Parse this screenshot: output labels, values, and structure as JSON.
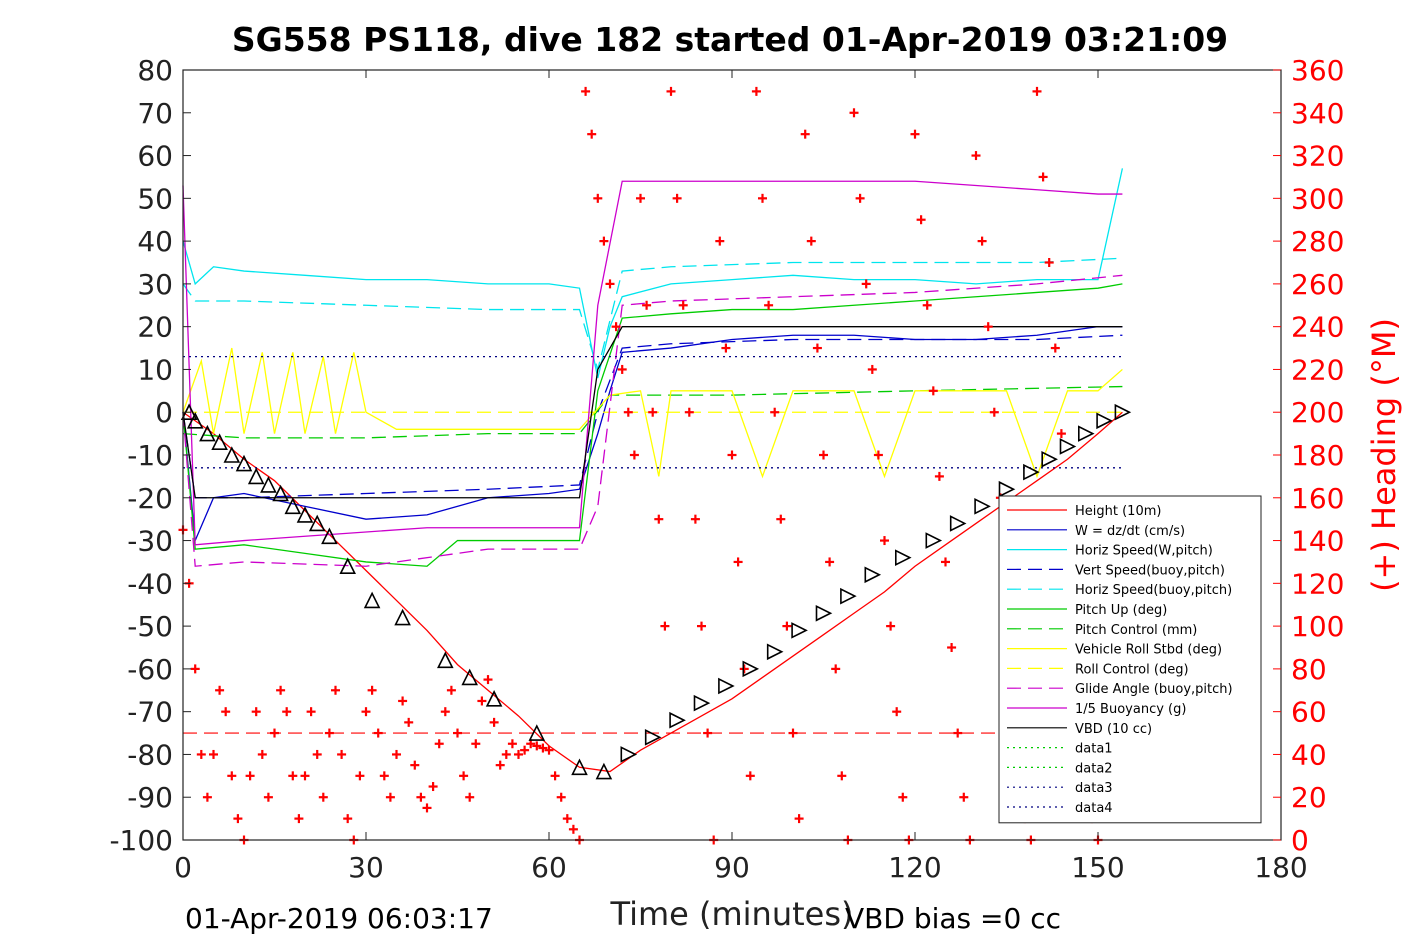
{
  "chart_data": {
    "type": "line",
    "title": "SG558 PS118, dive 182 started 01-Apr-2019 03:21:09",
    "xlabel": "Time (minutes)",
    "ylabel_right": "(+) Heading (°M)",
    "footer_left": "01-Apr-2019 06:03:17",
    "footer_right": "VBD bias =0 cc",
    "xlim": [
      0,
      180
    ],
    "ylim": [
      -100,
      80
    ],
    "ylim_right": [
      0,
      360
    ],
    "x_ticks": [
      "0",
      "30",
      "60",
      "90",
      "120",
      "150",
      "180"
    ],
    "y_ticks_left": [
      "80",
      "70",
      "60",
      "50",
      "40",
      "30",
      "20",
      "10",
      "0",
      "-10",
      "-20",
      "-30",
      "-40",
      "-50",
      "-60",
      "-70",
      "-80",
      "-90",
      "-100"
    ],
    "y_ticks_right": [
      "360",
      "340",
      "320",
      "300",
      "280",
      "260",
      "240",
      "220",
      "200",
      "180",
      "160",
      "140",
      "120",
      "100",
      "80",
      "60",
      "40",
      "20",
      "0"
    ],
    "legend_position": "lower-right",
    "grid": false,
    "series": [
      {
        "name": "Height (10m)",
        "color": "#ff0000",
        "style": "solid",
        "x": [
          0,
          5,
          10,
          15,
          20,
          25,
          30,
          35,
          40,
          45,
          50,
          55,
          60,
          65,
          70,
          75,
          80,
          85,
          90,
          95,
          100,
          105,
          110,
          115,
          120,
          125,
          130,
          135,
          140,
          145,
          150,
          154
        ],
        "y": [
          0,
          -5,
          -11,
          -16,
          -23,
          -30,
          -37,
          -44,
          -51,
          -59,
          -65,
          -71,
          -78,
          -83,
          -84,
          -79,
          -75,
          -71,
          -67,
          -62,
          -57,
          -52,
          -47,
          -42,
          -36,
          -31,
          -26,
          -21,
          -16,
          -11,
          -5,
          0
        ]
      },
      {
        "name": "W = dz/dt (cm/s)",
        "color": "#0000cc",
        "style": "solid",
        "x": [
          0,
          2,
          5,
          10,
          20,
          30,
          40,
          50,
          60,
          65,
          68,
          70,
          72,
          80,
          90,
          100,
          110,
          120,
          130,
          140,
          150,
          154
        ],
        "y": [
          0,
          -30,
          -20,
          -19,
          -22,
          -25,
          -24,
          -20,
          -19,
          -18,
          -5,
          5,
          14,
          15,
          17,
          18,
          18,
          17,
          17,
          18,
          20,
          20
        ]
      },
      {
        "name": "Horiz Speed(W,pitch)",
        "color": "#00e5ee",
        "style": "solid",
        "x": [
          0,
          2,
          5,
          10,
          20,
          30,
          40,
          50,
          60,
          65,
          68,
          70,
          72,
          80,
          90,
          100,
          110,
          120,
          130,
          140,
          150,
          154
        ],
        "y": [
          40,
          30,
          34,
          33,
          32,
          31,
          31,
          30,
          30,
          29,
          8,
          20,
          27,
          30,
          31,
          32,
          31,
          31,
          30,
          31,
          31,
          57
        ]
      },
      {
        "name": "Vert Speed(buoy,pitch)",
        "color": "#0000cc",
        "style": "dashed",
        "x": [
          0,
          2,
          10,
          30,
          50,
          65,
          68,
          72,
          80,
          100,
          120,
          140,
          154
        ],
        "y": [
          0,
          -20,
          -20,
          -19,
          -18,
          -17,
          0,
          15,
          16,
          17,
          17,
          17,
          18
        ]
      },
      {
        "name": "Horiz Speed(buoy,pitch)",
        "color": "#00e5ee",
        "style": "dashed",
        "x": [
          0,
          2,
          10,
          30,
          50,
          65,
          68,
          72,
          80,
          100,
          120,
          140,
          154
        ],
        "y": [
          30,
          26,
          26,
          25,
          24,
          24,
          10,
          33,
          34,
          35,
          35,
          35,
          36
        ]
      },
      {
        "name": "Pitch Up (deg)",
        "color": "#00cc00",
        "style": "solid",
        "x": [
          0,
          2,
          10,
          20,
          30,
          40,
          45,
          50,
          60,
          65,
          68,
          72,
          80,
          90,
          100,
          110,
          120,
          130,
          140,
          150,
          154
        ],
        "y": [
          0,
          -32,
          -31,
          -33,
          -35,
          -36,
          -30,
          -30,
          -30,
          -30,
          5,
          22,
          23,
          24,
          24,
          25,
          26,
          27,
          28,
          29,
          30
        ]
      },
      {
        "name": "Pitch Control (mm)",
        "color": "#00cc00",
        "style": "dashed",
        "x": [
          0,
          10,
          30,
          50,
          65,
          70,
          72,
          90,
          120,
          154
        ],
        "y": [
          -5,
          -6,
          -6,
          -5,
          -5,
          4,
          4,
          4,
          5,
          6
        ]
      },
      {
        "name": "Vehicle Roll Stbd (deg)",
        "color": "#ffff00",
        "style": "solid",
        "x": [
          0,
          3,
          5,
          8,
          10,
          13,
          15,
          18,
          20,
          23,
          25,
          28,
          30,
          35,
          40,
          45,
          50,
          55,
          60,
          65,
          70,
          75,
          78,
          80,
          85,
          90,
          95,
          100,
          105,
          110,
          115,
          120,
          125,
          130,
          135,
          140,
          145,
          150,
          154
        ],
        "y": [
          0,
          12,
          -5,
          15,
          -5,
          14,
          -5,
          14,
          -5,
          13,
          -5,
          14,
          0,
          -4,
          -4,
          -4,
          -4,
          -4,
          -4,
          -4,
          4,
          5,
          -15,
          5,
          5,
          5,
          -15,
          5,
          5,
          5,
          -15,
          5,
          5,
          5,
          5,
          -15,
          5,
          5,
          10
        ]
      },
      {
        "name": "Roll Control (deg)",
        "color": "#ffff00",
        "style": "dashed",
        "x": [
          0,
          154
        ],
        "y": [
          0,
          0
        ]
      },
      {
        "name": "Glide Angle (buoy,pitch)",
        "color": "#cc00cc",
        "style": "dashed",
        "x": [
          0,
          2,
          10,
          30,
          50,
          65,
          68,
          72,
          80,
          100,
          120,
          140,
          154
        ],
        "y": [
          0,
          -36,
          -35,
          -36,
          -32,
          -32,
          -22,
          25,
          26,
          27,
          28,
          30,
          32
        ]
      },
      {
        "name": "1/5 Buoyancy (g)",
        "color": "#cc00cc",
        "style": "solid",
        "x": [
          0,
          2,
          10,
          20,
          30,
          40,
          50,
          60,
          65,
          68,
          72,
          80,
          90,
          100,
          110,
          120,
          130,
          140,
          150,
          154
        ],
        "y": [
          53,
          -31,
          -30,
          -29,
          -28,
          -27,
          -27,
          -27,
          -27,
          25,
          54,
          54,
          54,
          54,
          54,
          54,
          53,
          52,
          51,
          51
        ]
      },
      {
        "name": "VBD (10 cc)",
        "color": "#000000",
        "style": "solid",
        "x": [
          0,
          2,
          10,
          30,
          50,
          65,
          68,
          72,
          80,
          100,
          120,
          140,
          154
        ],
        "y": [
          0,
          -20,
          -20,
          -20,
          -20,
          -20,
          10,
          20,
          20,
          20,
          20,
          20,
          20
        ]
      },
      {
        "name": "data1",
        "color": "#00cc00",
        "style": "dotted",
        "x": [],
        "y": []
      },
      {
        "name": "data2",
        "color": "#00cc00",
        "style": "dotted",
        "x": [],
        "y": []
      },
      {
        "name": "data3",
        "color": "#000080",
        "style": "dotted",
        "x": [
          0,
          154
        ],
        "y": [
          13,
          13
        ]
      },
      {
        "name": "data4",
        "color": "#000080",
        "style": "dotted",
        "x": [
          0,
          154
        ],
        "y": [
          -13,
          -13
        ]
      }
    ],
    "reference_lines": [
      {
        "color": "#ff0000",
        "style": "dashed",
        "x": [
          0,
          154
        ],
        "y": [
          -75,
          -75
        ]
      }
    ],
    "depth_markers": {
      "color": "#000000",
      "x": [
        1,
        2,
        4,
        6,
        8,
        10,
        12,
        14,
        16,
        18,
        20,
        22,
        24,
        27,
        31,
        36,
        43,
        47,
        51,
        58,
        65,
        69,
        73,
        77,
        81,
        85,
        89,
        93,
        97,
        101,
        105,
        109,
        113,
        118,
        123,
        127,
        131,
        135,
        139,
        142,
        145,
        148,
        151,
        154
      ],
      "y": [
        0,
        -2,
        -5,
        -7,
        -10,
        -12,
        -15,
        -17,
        -19,
        -22,
        -24,
        -26,
        -29,
        -36,
        -44,
        -48,
        -58,
        -62,
        -67,
        -75,
        -83,
        -84,
        -80,
        -76,
        -72,
        -68,
        -64,
        -60,
        -56,
        -51,
        -47,
        -43,
        -38,
        -34,
        -30,
        -26,
        -22,
        -18,
        -14,
        -11,
        -8,
        -5,
        -2,
        0
      ]
    },
    "heading": {
      "name": "(+) Heading (°M)",
      "color": "#ff0000",
      "marker": "+",
      "x": [
        0,
        1,
        2,
        3,
        4,
        5,
        6,
        7,
        8,
        9,
        10,
        11,
        12,
        13,
        14,
        15,
        16,
        17,
        18,
        19,
        20,
        21,
        22,
        23,
        24,
        25,
        26,
        27,
        28,
        29,
        30,
        31,
        32,
        33,
        34,
        35,
        36,
        37,
        38,
        39,
        40,
        41,
        42,
        43,
        44,
        45,
        46,
        47,
        48,
        49,
        50,
        51,
        52,
        53,
        54,
        55,
        56,
        57,
        58,
        59,
        60,
        61,
        62,
        63,
        64,
        65,
        66,
        67,
        68,
        69,
        70,
        71,
        72,
        73,
        74,
        75,
        76,
        77,
        78,
        79,
        80,
        81,
        82,
        83,
        84,
        85,
        86,
        87,
        88,
        89,
        90,
        91,
        92,
        93,
        94,
        95,
        96,
        97,
        98,
        99,
        100,
        101,
        102,
        103,
        104,
        105,
        106,
        107,
        108,
        109,
        110,
        111,
        112,
        113,
        114,
        115,
        116,
        117,
        118,
        119,
        120,
        121,
        122,
        123,
        124,
        125,
        126,
        127,
        128,
        129,
        130,
        131,
        132,
        133,
        134,
        135,
        136,
        137,
        138,
        139,
        140,
        141,
        142,
        143,
        144,
        145,
        146,
        147,
        148,
        149,
        150
      ],
      "y": [
        145,
        120,
        80,
        40,
        20,
        40,
        70,
        60,
        30,
        10,
        0,
        30,
        60,
        40,
        20,
        50,
        70,
        60,
        30,
        10,
        30,
        60,
        40,
        20,
        50,
        70,
        40,
        10,
        0,
        30,
        60,
        70,
        50,
        30,
        20,
        40,
        65,
        55,
        35,
        20,
        15,
        25,
        45,
        60,
        70,
        50,
        30,
        20,
        45,
        65,
        75,
        55,
        35,
        40,
        45,
        40,
        42,
        45,
        44,
        43,
        42,
        30,
        20,
        10,
        5,
        0,
        350,
        330,
        300,
        280,
        260,
        240,
        220,
        200,
        180,
        300,
        250,
        200,
        150,
        100,
        350,
        300,
        250,
        200,
        150,
        100,
        50,
        0,
        280,
        230,
        180,
        130,
        80,
        30,
        350,
        300,
        250,
        200,
        150,
        100,
        50,
        10,
        330,
        280,
        230,
        180,
        130,
        80,
        30,
        0,
        340,
        300,
        260,
        220,
        180,
        140,
        100,
        60,
        20,
        0,
        330,
        290,
        250,
        210,
        170,
        130,
        90,
        50,
        20,
        0,
        320,
        280,
        240,
        200,
        160,
        120,
        80,
        40,
        10,
        0,
        350,
        310,
        270,
        230,
        190,
        150,
        110,
        70,
        30,
        10,
        0
      ]
    }
  }
}
